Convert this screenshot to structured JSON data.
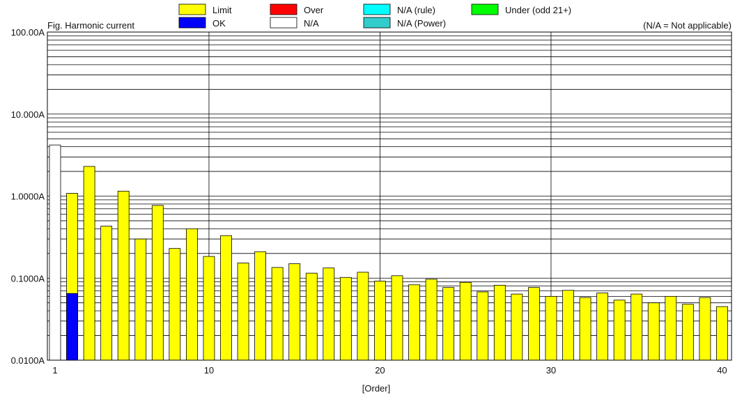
{
  "chart_data": {
    "type": "bar",
    "title": "Fig. Harmonic current",
    "note": "(N/A = Not applicable)",
    "xlabel": "[Order]",
    "ylabel": "",
    "y_scale": "log",
    "ylim": [
      0.01,
      100
    ],
    "xlim": [
      1,
      40
    ],
    "y_ticks": [
      "0.0100A",
      "0.1000A",
      "1.0000A",
      "10.000A",
      "100.00A"
    ],
    "x_ticks": [
      "1",
      "10",
      "20",
      "30",
      "40"
    ],
    "grid": true,
    "legend_placement": "top",
    "legend": [
      {
        "label": "Limit",
        "color": "#ffff00"
      },
      {
        "label": "Over",
        "color": "#ff0000"
      },
      {
        "label": "N/A (rule)",
        "color": "#00ffff"
      },
      {
        "label": "Under (odd 21+)",
        "color": "#00ff00"
      },
      {
        "label": "OK",
        "color": "#0000ff"
      },
      {
        "label": "N/A",
        "color": "#ffffff"
      },
      {
        "label": "N/A (Power)",
        "color": "#33cccc"
      }
    ],
    "na_bar": {
      "order": 1,
      "value": 4.2
    },
    "orders": [
      2,
      3,
      4,
      5,
      6,
      7,
      8,
      9,
      10,
      11,
      12,
      13,
      14,
      15,
      16,
      17,
      18,
      19,
      20,
      21,
      22,
      23,
      24,
      25,
      26,
      27,
      28,
      29,
      30,
      31,
      32,
      33,
      34,
      35,
      36,
      37,
      38,
      39,
      40
    ],
    "series": [
      {
        "name": "Limit",
        "values": [
          1.08,
          2.3,
          0.43,
          1.15,
          0.3,
          0.77,
          0.23,
          0.4,
          0.184,
          0.33,
          0.153,
          0.21,
          0.135,
          0.15,
          0.115,
          0.133,
          0.102,
          0.118,
          0.092,
          0.107,
          0.083,
          0.097,
          0.077,
          0.089,
          0.068,
          0.082,
          0.064,
          0.077,
          0.06,
          0.071,
          0.058,
          0.066,
          0.054,
          0.064,
          0.05,
          0.06,
          0.048,
          0.058,
          0.045
        ]
      },
      {
        "name": "OK",
        "values": [
          0.065,
          null,
          null,
          null,
          null,
          null,
          null,
          null,
          null,
          null,
          null,
          null,
          null,
          null,
          null,
          null,
          null,
          null,
          null,
          null,
          null,
          null,
          null,
          null,
          null,
          null,
          null,
          null,
          null,
          null,
          null,
          null,
          null,
          null,
          null,
          null,
          null,
          null,
          null
        ]
      }
    ]
  }
}
